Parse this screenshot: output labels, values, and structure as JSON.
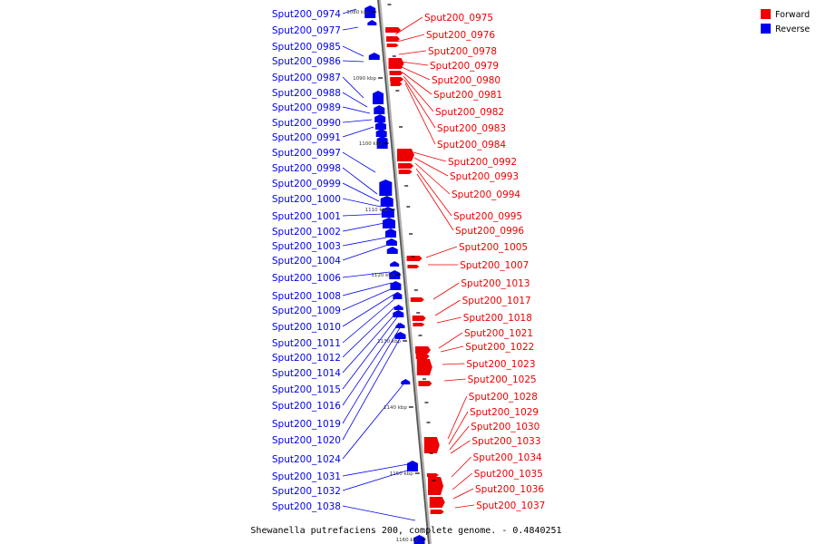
{
  "legend": {
    "forward_label": "Forward",
    "forward_color": "#ee0000",
    "reverse_label": "Reverse",
    "reverse_color": "#0000ee"
  },
  "caption": "Shewanella putrefaciens 200, complete genome. - 0.4840251",
  "kbp_ticks": [
    "1080 kbp",
    "1090 kbp",
    "1100 kbp",
    "1110 kbp",
    "1120 kbp",
    "1130 kbp",
    "1140 kbp",
    "1150 kbp",
    "1160 kbp"
  ],
  "reverse_genes": [
    "Sput200_0974",
    "Sput200_0977",
    "Sput200_0985",
    "Sput200_0986",
    "Sput200_0987",
    "Sput200_0988",
    "Sput200_0989",
    "Sput200_0990",
    "Sput200_0991",
    "Sput200_0997",
    "Sput200_0998",
    "Sput200_0999",
    "Sput200_1000",
    "Sput200_1001",
    "Sput200_1002",
    "Sput200_1003",
    "Sput200_1004",
    "Sput200_1006",
    "Sput200_1008",
    "Sput200_1009",
    "Sput200_1010",
    "Sput200_1011",
    "Sput200_1012",
    "Sput200_1014",
    "Sput200_1015",
    "Sput200_1016",
    "Sput200_1019",
    "Sput200_1020",
    "Sput200_1024",
    "Sput200_1031",
    "Sput200_1032",
    "Sput200_1038"
  ],
  "forward_genes": [
    "Sput200_0975",
    "Sput200_0976",
    "Sput200_0978",
    "Sput200_0979",
    "Sput200_0980",
    "Sput200_0981",
    "Sput200_0982",
    "Sput200_0983",
    "Sput200_0984",
    "Sput200_0992",
    "Sput200_0993",
    "Sput200_0994",
    "Sput200_0995",
    "Sput200_0996",
    "Sput200_1005",
    "Sput200_1007",
    "Sput200_1013",
    "Sput200_1017",
    "Sput200_1018",
    "Sput200_1021",
    "Sput200_1022",
    "Sput200_1023",
    "Sput200_1025",
    "Sput200_1028",
    "Sput200_1029",
    "Sput200_1030",
    "Sput200_1033",
    "Sput200_1034",
    "Sput200_1035",
    "Sput200_1036",
    "Sput200_1037"
  ]
}
